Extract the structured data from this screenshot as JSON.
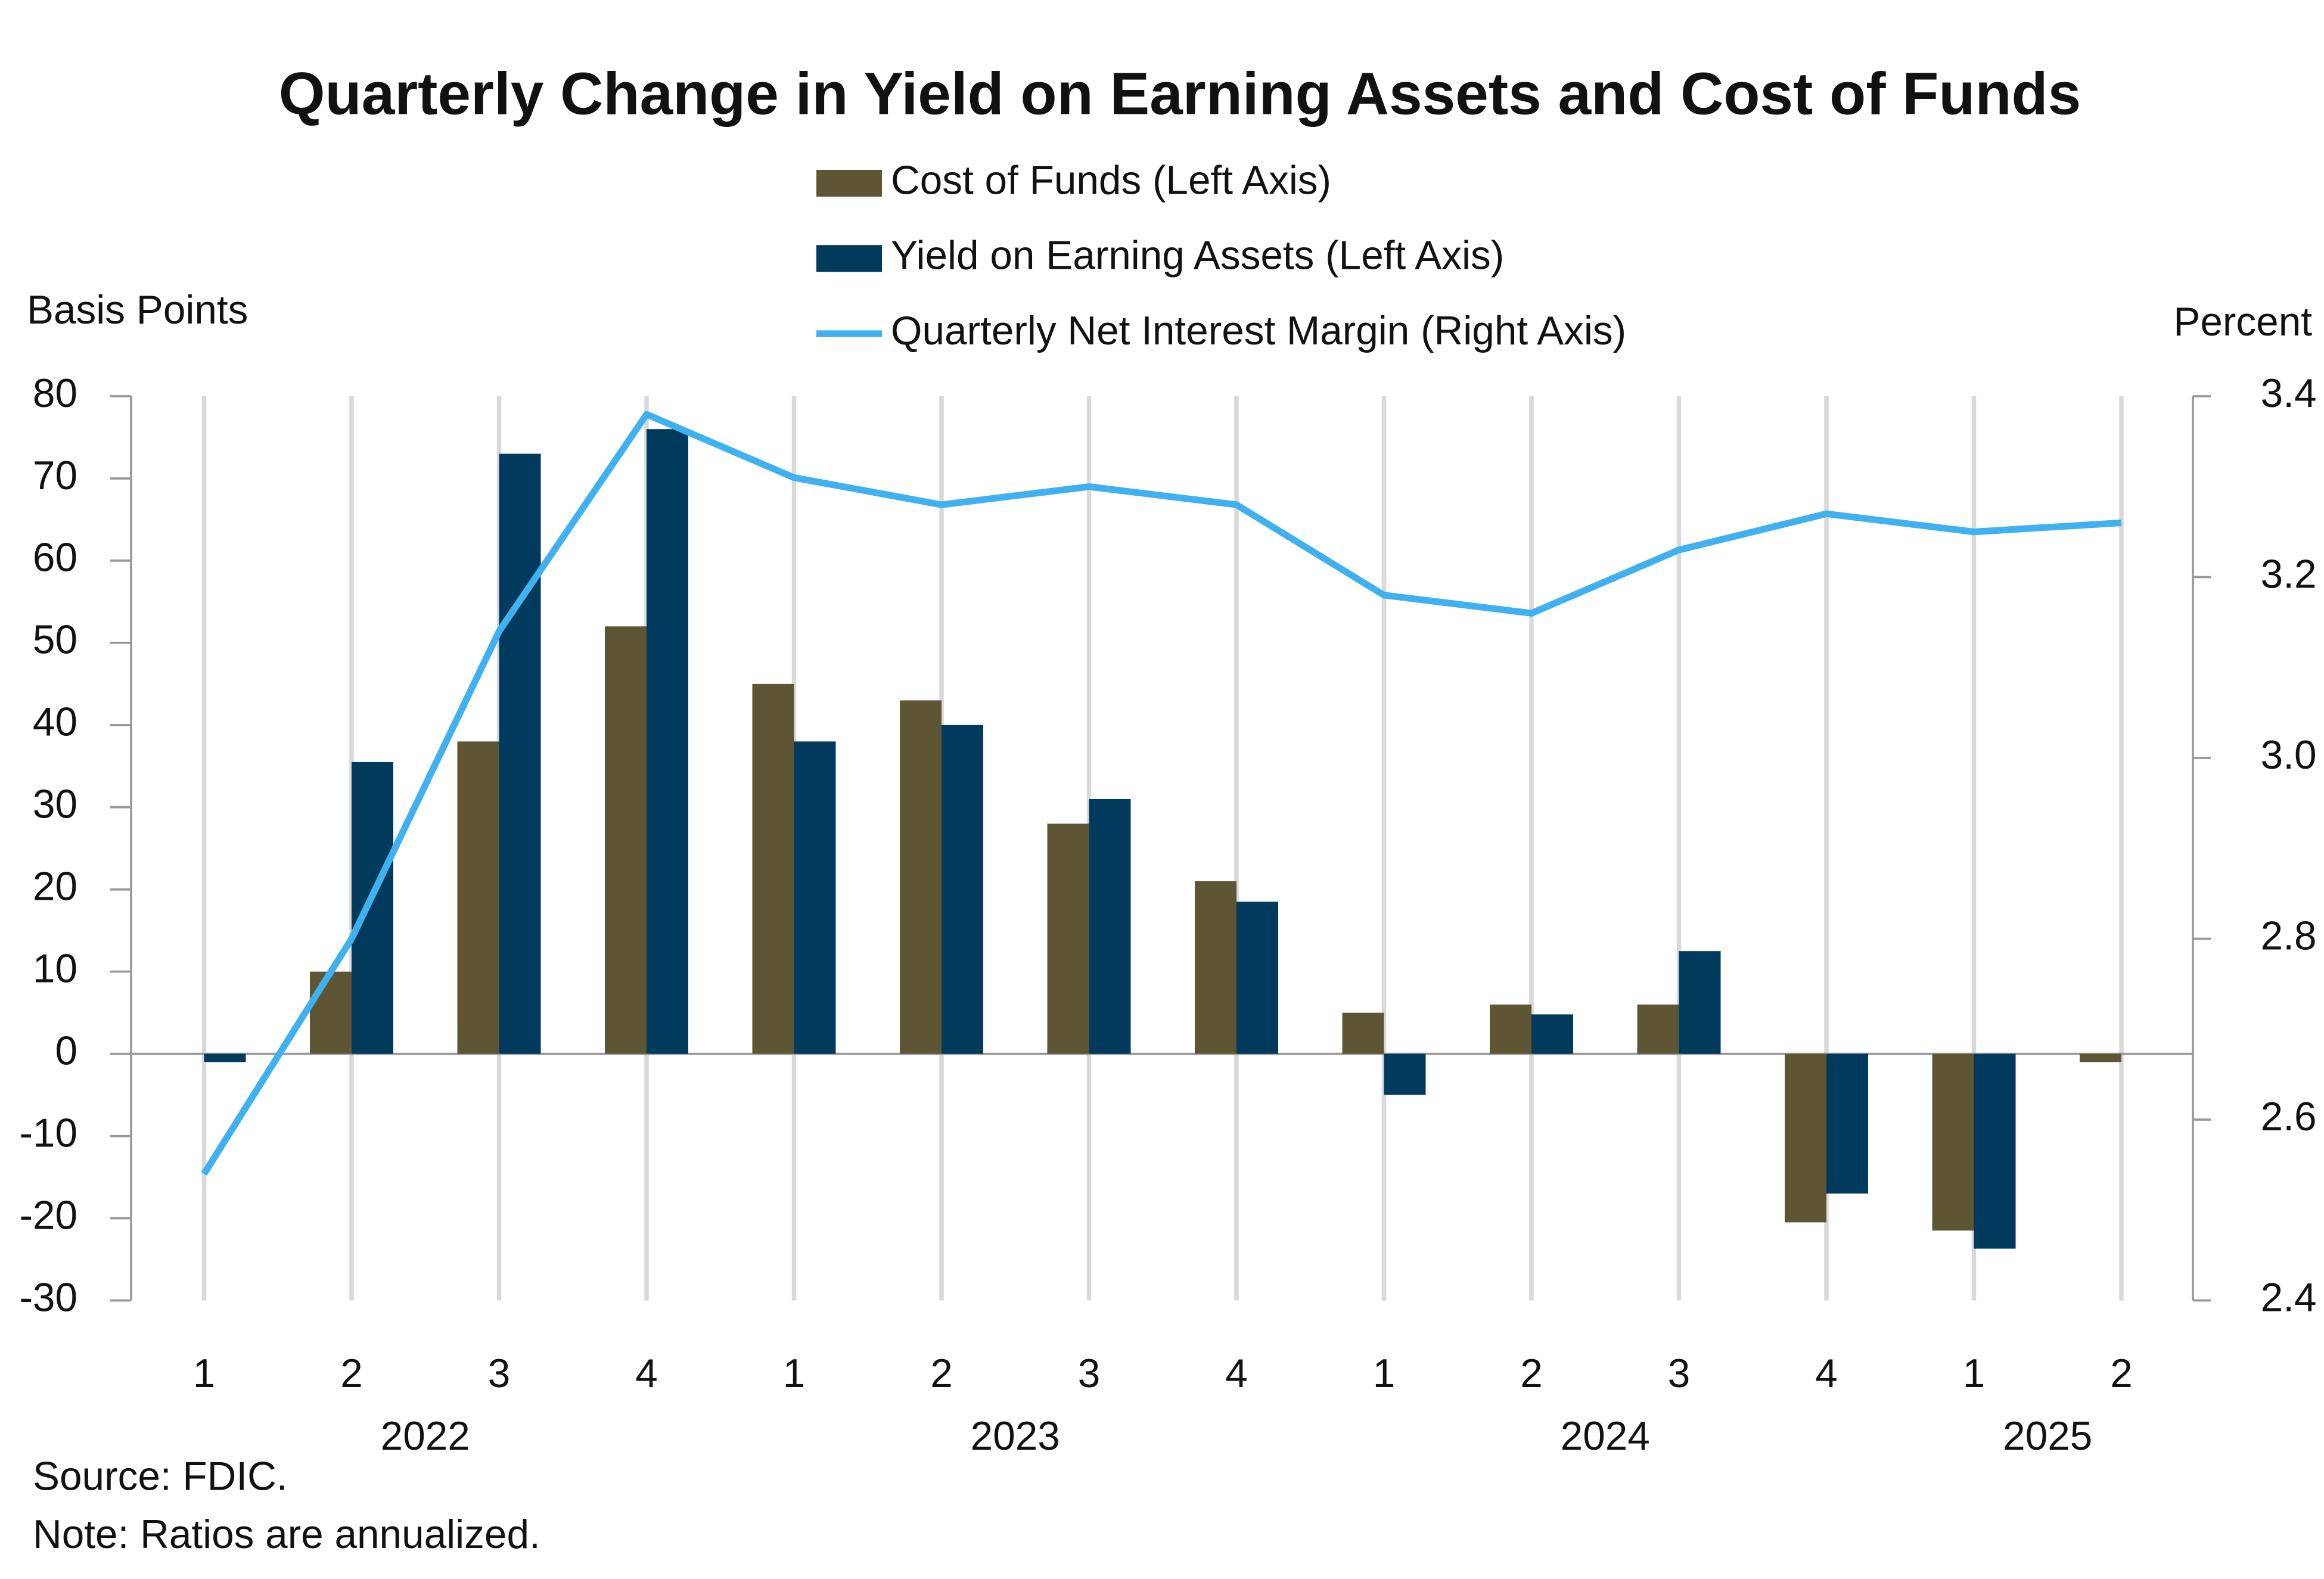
{
  "chart_data": {
    "type": "bar",
    "title": "Quarterly Change in Yield on Earning Assets and Cost of Funds",
    "y_label": "Basis Points",
    "y2_label": "Percent",
    "categories": [
      "1",
      "2",
      "3",
      "4",
      "1",
      "2",
      "3",
      "4",
      "1",
      "2",
      "3",
      "4",
      "1",
      "2"
    ],
    "years": [
      "2022",
      "2022",
      "2022",
      "2022",
      "2023",
      "2023",
      "2023",
      "2023",
      "2024",
      "2024",
      "2024",
      "2024",
      "2025",
      "2025"
    ],
    "series": [
      {
        "name": "Cost of Funds (Left Axis)",
        "type": "bar",
        "color": "#5e5535",
        "values": [
          0,
          10,
          38,
          52,
          45,
          43,
          28,
          21,
          5,
          6,
          6,
          -20.5,
          -21.5,
          -1
        ]
      },
      {
        "name": "Yield on Earning Assets (Left Axis)",
        "type": "bar",
        "color": "#003a5d",
        "values": [
          -1,
          35.5,
          73,
          76,
          38,
          40,
          31,
          18.5,
          -5,
          4.8,
          12.5,
          -17,
          -23.7,
          0
        ]
      },
      {
        "name": "Quarterly Net Interest Margin (Right Axis)",
        "type": "line",
        "axis": "y2",
        "color": "#3fb0f0",
        "values": [
          2.54,
          2.8,
          3.14,
          3.38,
          3.31,
          3.28,
          3.3,
          3.28,
          3.18,
          3.16,
          3.23,
          3.27,
          3.25,
          3.26
        ]
      }
    ],
    "ylim": [
      -30,
      80
    ],
    "yticks": [
      -30,
      -20,
      -10,
      0,
      10,
      20,
      30,
      40,
      50,
      60,
      70,
      80
    ],
    "y2lim": [
      2.4,
      3.4
    ],
    "y2ticks": [
      2.4,
      2.6,
      2.8,
      {
        "value": 3,
        "label": "3.0"
      },
      3.2,
      3.4
    ],
    "grid": true,
    "legend": "top",
    "source": "Source: FDIC.",
    "note": "Note: Ratios are annualized."
  }
}
